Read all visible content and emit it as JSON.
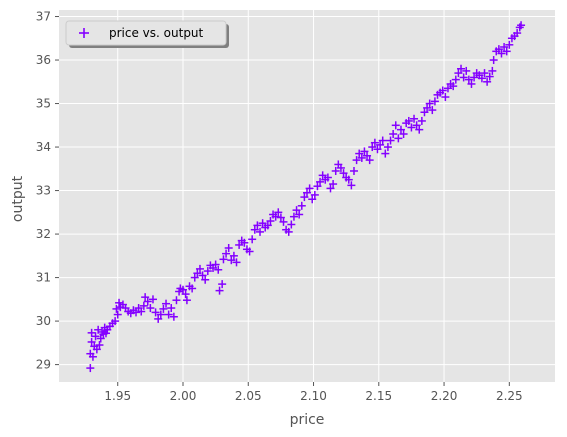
{
  "chart_data": {
    "type": "scatter",
    "xlabel": "price",
    "ylabel": "output",
    "xlim": [
      1.905,
      2.285
    ],
    "ylim": [
      28.6,
      37.15
    ],
    "xticks": [
      "1.95",
      "2.00",
      "2.05",
      "2.10",
      "2.15",
      "2.20",
      "2.25"
    ],
    "yticks": [
      "29",
      "30",
      "31",
      "32",
      "33",
      "34",
      "35",
      "36",
      "37"
    ],
    "grid": true,
    "legend_position": "top-left",
    "marker": "+",
    "colors": {
      "series": "#8400ff",
      "plot_bg": "#e5e5e5",
      "grid": "#ffffff",
      "tick_text": "#555555"
    },
    "series": [
      {
        "name": "price vs. output",
        "points": [
          [
            1.929,
            28.92
          ],
          [
            1.929,
            29.25
          ],
          [
            1.93,
            29.73
          ],
          [
            1.93,
            29.52
          ],
          [
            1.931,
            29.18
          ],
          [
            1.932,
            29.42
          ],
          [
            1.933,
            29.65
          ],
          [
            1.934,
            29.35
          ],
          [
            1.935,
            29.8
          ],
          [
            1.936,
            29.45
          ],
          [
            1.937,
            29.6
          ],
          [
            1.938,
            29.75
          ],
          [
            1.939,
            29.7
          ],
          [
            1.94,
            29.85
          ],
          [
            1.941,
            29.72
          ],
          [
            1.942,
            29.8
          ],
          [
            1.944,
            29.88
          ],
          [
            1.946,
            29.95
          ],
          [
            1.948,
            30.0
          ],
          [
            1.949,
            30.28
          ],
          [
            1.95,
            30.15
          ],
          [
            1.951,
            30.42
          ],
          [
            1.952,
            30.32
          ],
          [
            1.954,
            30.38
          ],
          [
            1.956,
            30.3
          ],
          [
            1.958,
            30.22
          ],
          [
            1.96,
            30.18
          ],
          [
            1.962,
            30.25
          ],
          [
            1.964,
            30.2
          ],
          [
            1.966,
            30.3
          ],
          [
            1.968,
            30.22
          ],
          [
            1.97,
            30.35
          ],
          [
            1.971,
            30.55
          ],
          [
            1.973,
            30.45
          ],
          [
            1.975,
            30.3
          ],
          [
            1.977,
            30.5
          ],
          [
            1.979,
            30.2
          ],
          [
            1.981,
            30.05
          ],
          [
            1.983,
            30.15
          ],
          [
            1.985,
            30.28
          ],
          [
            1.987,
            30.4
          ],
          [
            1.989,
            30.15
          ],
          [
            1.991,
            30.3
          ],
          [
            1.993,
            30.1
          ],
          [
            1.995,
            30.48
          ],
          [
            1.997,
            30.68
          ],
          [
            1.998,
            30.75
          ],
          [
            2.0,
            30.72
          ],
          [
            2.002,
            30.62
          ],
          [
            2.003,
            30.48
          ],
          [
            2.005,
            30.8
          ],
          [
            2.007,
            30.75
          ],
          [
            2.009,
            31.0
          ],
          [
            2.011,
            31.1
          ],
          [
            2.013,
            31.2
          ],
          [
            2.015,
            31.05
          ],
          [
            2.017,
            30.95
          ],
          [
            2.019,
            31.15
          ],
          [
            2.021,
            31.28
          ],
          [
            2.023,
            31.22
          ],
          [
            2.025,
            31.3
          ],
          [
            2.027,
            31.18
          ],
          [
            2.028,
            30.7
          ],
          [
            2.03,
            30.85
          ],
          [
            2.031,
            31.42
          ],
          [
            2.033,
            31.55
          ],
          [
            2.035,
            31.68
          ],
          [
            2.037,
            31.4
          ],
          [
            2.039,
            31.5
          ],
          [
            2.041,
            31.35
          ],
          [
            2.043,
            31.75
          ],
          [
            2.045,
            31.85
          ],
          [
            2.047,
            31.8
          ],
          [
            2.049,
            31.65
          ],
          [
            2.051,
            31.6
          ],
          [
            2.053,
            31.88
          ],
          [
            2.055,
            32.1
          ],
          [
            2.057,
            32.2
          ],
          [
            2.059,
            32.05
          ],
          [
            2.061,
            32.25
          ],
          [
            2.063,
            32.15
          ],
          [
            2.065,
            32.2
          ],
          [
            2.067,
            32.3
          ],
          [
            2.069,
            32.45
          ],
          [
            2.071,
            32.4
          ],
          [
            2.073,
            32.5
          ],
          [
            2.075,
            32.38
          ],
          [
            2.077,
            32.28
          ],
          [
            2.079,
            32.1
          ],
          [
            2.081,
            32.05
          ],
          [
            2.083,
            32.22
          ],
          [
            2.085,
            32.4
          ],
          [
            2.087,
            32.55
          ],
          [
            2.089,
            32.45
          ],
          [
            2.091,
            32.65
          ],
          [
            2.093,
            32.85
          ],
          [
            2.095,
            32.95
          ],
          [
            2.097,
            33.05
          ],
          [
            2.099,
            32.8
          ],
          [
            2.101,
            32.9
          ],
          [
            2.103,
            33.1
          ],
          [
            2.105,
            33.2
          ],
          [
            2.107,
            33.35
          ],
          [
            2.109,
            33.25
          ],
          [
            2.111,
            33.3
          ],
          [
            2.113,
            33.05
          ],
          [
            2.115,
            33.15
          ],
          [
            2.117,
            33.45
          ],
          [
            2.119,
            33.6
          ],
          [
            2.121,
            33.52
          ],
          [
            2.123,
            33.4
          ],
          [
            2.125,
            33.3
          ],
          [
            2.127,
            33.25
          ],
          [
            2.129,
            33.12
          ],
          [
            2.131,
            33.45
          ],
          [
            2.133,
            33.7
          ],
          [
            2.135,
            33.85
          ],
          [
            2.137,
            33.75
          ],
          [
            2.139,
            33.9
          ],
          [
            2.141,
            33.8
          ],
          [
            2.143,
            33.7
          ],
          [
            2.145,
            34.0
          ],
          [
            2.147,
            34.1
          ],
          [
            2.149,
            33.95
          ],
          [
            2.151,
            34.05
          ],
          [
            2.153,
            34.15
          ],
          [
            2.155,
            33.85
          ],
          [
            2.157,
            34.0
          ],
          [
            2.159,
            34.15
          ],
          [
            2.161,
            34.3
          ],
          [
            2.163,
            34.5
          ],
          [
            2.165,
            34.2
          ],
          [
            2.167,
            34.4
          ],
          [
            2.169,
            34.3
          ],
          [
            2.171,
            34.55
          ],
          [
            2.173,
            34.6
          ],
          [
            2.175,
            34.45
          ],
          [
            2.177,
            34.65
          ],
          [
            2.179,
            34.5
          ],
          [
            2.181,
            34.4
          ],
          [
            2.183,
            34.6
          ],
          [
            2.185,
            34.8
          ],
          [
            2.187,
            34.9
          ],
          [
            2.189,
            35.0
          ],
          [
            2.191,
            34.85
          ],
          [
            2.193,
            35.05
          ],
          [
            2.195,
            35.2
          ],
          [
            2.197,
            35.25
          ],
          [
            2.199,
            35.3
          ],
          [
            2.201,
            35.15
          ],
          [
            2.203,
            35.35
          ],
          [
            2.205,
            35.45
          ],
          [
            2.207,
            35.4
          ],
          [
            2.209,
            35.55
          ],
          [
            2.211,
            35.7
          ],
          [
            2.213,
            35.8
          ],
          [
            2.215,
            35.6
          ],
          [
            2.217,
            35.75
          ],
          [
            2.219,
            35.55
          ],
          [
            2.221,
            35.45
          ],
          [
            2.223,
            35.6
          ],
          [
            2.225,
            35.7
          ],
          [
            2.227,
            35.65
          ],
          [
            2.229,
            35.58
          ],
          [
            2.231,
            35.7
          ],
          [
            2.233,
            35.5
          ],
          [
            2.235,
            35.62
          ],
          [
            2.237,
            35.75
          ],
          [
            2.238,
            36.0
          ],
          [
            2.24,
            36.2
          ],
          [
            2.242,
            36.25
          ],
          [
            2.244,
            36.15
          ],
          [
            2.246,
            36.3
          ],
          [
            2.248,
            36.2
          ],
          [
            2.25,
            36.35
          ],
          [
            2.252,
            36.5
          ],
          [
            2.254,
            36.55
          ],
          [
            2.256,
            36.62
          ],
          [
            2.258,
            36.75
          ],
          [
            2.259,
            36.8
          ]
        ]
      }
    ]
  }
}
